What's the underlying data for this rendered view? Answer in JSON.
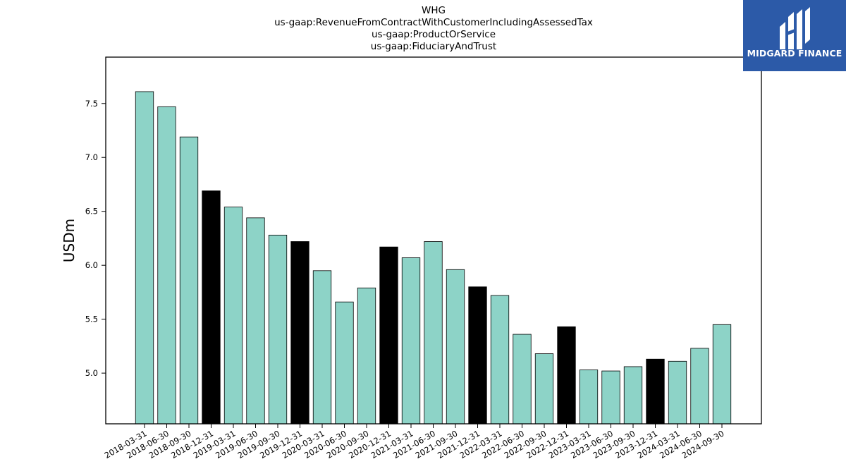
{
  "chart_data": {
    "type": "bar",
    "title_lines": [
      "WHG",
      "us-gaap:RevenueFromContractWithCustomerIncludingAssessedTax",
      "us-gaap:ProductOrService",
      "us-gaap:FiduciaryAndTrust"
    ],
    "xlabel": "",
    "ylabel": "USDm",
    "ylim": [
      4.53,
      7.93
    ],
    "yticks": [
      5.0,
      5.5,
      6.0,
      6.5,
      7.0,
      7.5
    ],
    "ytick_labels": [
      "5.0",
      "5.5",
      "6.0",
      "6.5",
      "7.0",
      "7.5"
    ],
    "categories": [
      "2018-03-31",
      "2018-06-30",
      "2018-09-30",
      "2018-12-31",
      "2019-03-31",
      "2019-06-30",
      "2019-09-30",
      "2019-12-31",
      "2020-03-31",
      "2020-06-30",
      "2020-09-30",
      "2020-12-31",
      "2021-03-31",
      "2021-06-30",
      "2021-09-30",
      "2021-12-31",
      "2022-03-31",
      "2022-06-30",
      "2022-09-30",
      "2022-12-31",
      "2023-03-31",
      "2023-06-30",
      "2023-09-30",
      "2023-12-31",
      "2024-03-31",
      "2024-06-30",
      "2024-09-30"
    ],
    "values": [
      7.61,
      7.47,
      7.19,
      6.69,
      6.54,
      6.44,
      6.28,
      6.22,
      5.95,
      5.66,
      5.79,
      6.17,
      6.07,
      6.22,
      5.96,
      5.8,
      5.72,
      5.36,
      5.18,
      5.43,
      5.03,
      5.02,
      5.06,
      5.13,
      5.11,
      5.23,
      5.45
    ],
    "highlight": [
      false,
      false,
      false,
      true,
      false,
      false,
      false,
      true,
      false,
      false,
      false,
      true,
      false,
      false,
      false,
      true,
      false,
      false,
      false,
      true,
      false,
      false,
      false,
      true,
      false,
      false,
      false
    ],
    "colors": {
      "bar": "#8dd3c7",
      "highlight_bar": "#000000",
      "edge": "#000000",
      "axis": "#000000"
    },
    "grid": false,
    "legend": "none"
  },
  "logo": {
    "text": "MIDGARD FINANCE",
    "icon": "midgard-logo-icon",
    "background": "#2c5aa8"
  }
}
